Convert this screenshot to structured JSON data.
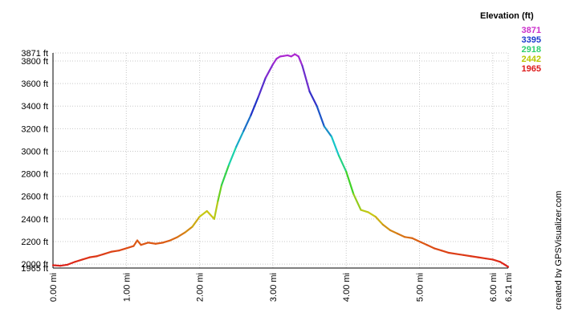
{
  "chart_data": {
    "type": "line",
    "xunit": "mi",
    "yunit": "ft",
    "xlim": [
      0,
      6.21
    ],
    "ylim": [
      1965,
      3871
    ],
    "x_ticks": [
      "0.00 mi",
      "1.00 mi",
      "2.00 mi",
      "3.00 mi",
      "4.00 mi",
      "5.00 mi",
      "6.00 mi",
      "6.21 mi"
    ],
    "x_tick_values": [
      0,
      1,
      2,
      3,
      4,
      5,
      6,
      6.21
    ],
    "y_ticks": [
      "1965 ft",
      "2000 ft",
      "2200 ft",
      "2400 ft",
      "2600 ft",
      "2800 ft",
      "3000 ft",
      "3200 ft",
      "3400 ft",
      "3600 ft",
      "3800 ft",
      "3871 ft"
    ],
    "y_tick_values": [
      1965,
      2000,
      2200,
      2400,
      2600,
      2800,
      3000,
      3200,
      3400,
      3600,
      3800,
      3871
    ],
    "grid": true,
    "color_scale": "elevation (red → orange → yellow → green → cyan → blue → purple)",
    "series": [
      {
        "x": [
          0.0,
          0.1,
          0.2,
          0.3,
          0.4,
          0.5,
          0.6,
          0.7,
          0.8,
          0.9,
          1.0,
          1.1,
          1.15,
          1.2,
          1.3,
          1.4,
          1.5,
          1.6,
          1.7,
          1.8,
          1.9,
          2.0,
          2.1,
          2.2,
          2.25,
          2.3,
          2.4,
          2.5,
          2.6,
          2.7,
          2.8,
          2.9,
          3.0,
          3.05,
          3.1,
          3.15,
          3.2,
          3.25,
          3.3,
          3.35,
          3.4,
          3.5,
          3.6,
          3.7,
          3.8,
          3.9,
          4.0,
          4.1,
          4.2,
          4.3,
          4.4,
          4.5,
          4.6,
          4.7,
          4.8,
          4.9,
          5.0,
          5.1,
          5.2,
          5.3,
          5.4,
          5.5,
          5.6,
          5.7,
          5.8,
          5.9,
          6.0,
          6.1,
          6.15,
          6.21
        ],
        "y": [
          1990,
          1985,
          1995,
          2020,
          2040,
          2060,
          2070,
          2090,
          2110,
          2120,
          2140,
          2160,
          2210,
          2170,
          2190,
          2180,
          2190,
          2210,
          2240,
          2280,
          2330,
          2420,
          2470,
          2400,
          2560,
          2700,
          2880,
          3040,
          3180,
          3320,
          3480,
          3650,
          3770,
          3820,
          3840,
          3845,
          3850,
          3840,
          3860,
          3840,
          3760,
          3530,
          3400,
          3220,
          3130,
          2960,
          2820,
          2620,
          2480,
          2460,
          2420,
          2350,
          2300,
          2270,
          2240,
          2230,
          2200,
          2170,
          2140,
          2120,
          2100,
          2090,
          2080,
          2070,
          2060,
          2050,
          2040,
          2020,
          2000,
          1975
        ]
      }
    ]
  },
  "legend": {
    "title": "Elevation (ft)",
    "items": [
      {
        "label": "3871",
        "color": "#cc33cc"
      },
      {
        "label": "3395",
        "color": "#1a3acc"
      },
      {
        "label": "2918",
        "color": "#2fd070"
      },
      {
        "label": "2442",
        "color": "#b8c800"
      },
      {
        "label": "1965",
        "color": "#dd1a1a"
      }
    ]
  },
  "credit": "created by GPSVisualizer.com"
}
